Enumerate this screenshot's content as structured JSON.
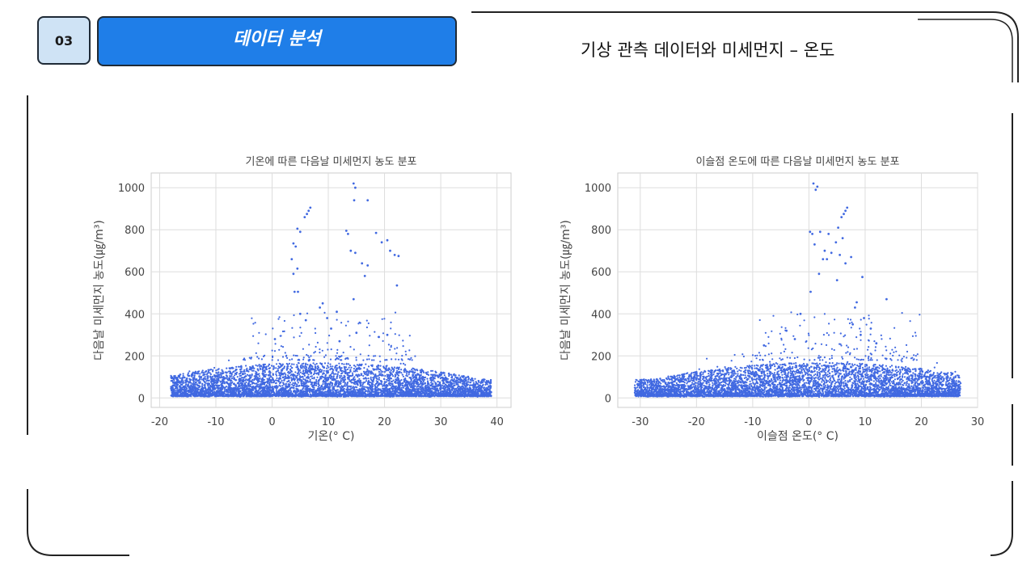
{
  "header": {
    "section_number": "03",
    "section_title": "데이터 분석",
    "slide_title": "기상 관측 데이터와 미세먼지 – 온도"
  },
  "colors": {
    "accent": "#1f7ee8",
    "number_box": "#cfe3f5",
    "point": "#4169e1",
    "grid": "#dddddd"
  },
  "chart_data": [
    {
      "type": "scatter",
      "title": "기온에 따른 다음날 미세먼지 농도 분포",
      "xlabel": "기온(° C)",
      "ylabel": "다음날 미세먼지 농도(㎍/m³)",
      "xlim": [
        -21.5,
        42.5
      ],
      "ylim": [
        -45,
        1070
      ],
      "xticks": [
        -20,
        -10,
        0,
        10,
        20,
        30,
        40
      ],
      "yticks": [
        0,
        200,
        400,
        600,
        800,
        1000
      ],
      "grid": true,
      "bulk": {
        "x_range": [
          -18,
          39
        ],
        "y_typical": [
          5,
          120
        ],
        "peak_center": 8
      },
      "outliers": [
        {
          "x": 14.5,
          "y": 1020
        },
        {
          "x": 14.8,
          "y": 1000
        },
        {
          "x": 14.6,
          "y": 940
        },
        {
          "x": 17.0,
          "y": 940
        },
        {
          "x": 6.8,
          "y": 905
        },
        {
          "x": 6.5,
          "y": 890
        },
        {
          "x": 6.2,
          "y": 875
        },
        {
          "x": 5.8,
          "y": 860
        },
        {
          "x": 4.5,
          "y": 805
        },
        {
          "x": 5.0,
          "y": 790
        },
        {
          "x": 13.2,
          "y": 795
        },
        {
          "x": 13.5,
          "y": 780
        },
        {
          "x": 18.5,
          "y": 785
        },
        {
          "x": 20.5,
          "y": 750
        },
        {
          "x": 3.8,
          "y": 735
        },
        {
          "x": 4.2,
          "y": 720
        },
        {
          "x": 19.5,
          "y": 740
        },
        {
          "x": 14.0,
          "y": 700
        },
        {
          "x": 14.8,
          "y": 690
        },
        {
          "x": 21.0,
          "y": 700
        },
        {
          "x": 21.8,
          "y": 680
        },
        {
          "x": 22.5,
          "y": 675
        },
        {
          "x": 3.5,
          "y": 660
        },
        {
          "x": 16.0,
          "y": 640
        },
        {
          "x": 17.0,
          "y": 630
        },
        {
          "x": 4.5,
          "y": 615
        },
        {
          "x": 3.8,
          "y": 590
        },
        {
          "x": 16.5,
          "y": 580
        },
        {
          "x": 22.2,
          "y": 535
        },
        {
          "x": 4.0,
          "y": 505
        },
        {
          "x": 4.6,
          "y": 505
        },
        {
          "x": 14.5,
          "y": 470
        },
        {
          "x": 9.0,
          "y": 450
        },
        {
          "x": 8.5,
          "y": 430
        },
        {
          "x": 5.0,
          "y": 400
        },
        {
          "x": 11.5,
          "y": 410
        },
        {
          "x": 9.8,
          "y": 380
        },
        {
          "x": 6.0,
          "y": 370
        },
        {
          "x": 10.5,
          "y": 330
        },
        {
          "x": 15.0,
          "y": 310
        },
        {
          "x": 20.5,
          "y": 300
        },
        {
          "x": 19.0,
          "y": 290
        },
        {
          "x": 0.5,
          "y": 280
        },
        {
          "x": 12.0,
          "y": 270
        }
      ]
    },
    {
      "type": "scatter",
      "title": "이슬점 온도에 따른 다음날 미세먼지 농도 분포",
      "xlabel": "이슬점 온도(° C)",
      "ylabel": "다음날 미세먼지 농도(㎍/m³)",
      "xlim": [
        -34,
        30
      ],
      "ylim": [
        -45,
        1070
      ],
      "xticks": [
        -30,
        -20,
        -10,
        0,
        10,
        20,
        30
      ],
      "yticks": [
        0,
        200,
        400,
        600,
        800,
        1000
      ],
      "grid": true,
      "bulk": {
        "x_range": [
          -31,
          27
        ],
        "y_typical": [
          5,
          120
        ],
        "peak_center": 2
      },
      "outliers": [
        {
          "x": 0.8,
          "y": 1020
        },
        {
          "x": 1.5,
          "y": 1005
        },
        {
          "x": 1.2,
          "y": 990
        },
        {
          "x": 6.8,
          "y": 905
        },
        {
          "x": 6.5,
          "y": 890
        },
        {
          "x": 6.2,
          "y": 875
        },
        {
          "x": 5.8,
          "y": 860
        },
        {
          "x": 5.2,
          "y": 810
        },
        {
          "x": 0.2,
          "y": 790
        },
        {
          "x": 0.6,
          "y": 780
        },
        {
          "x": 2.0,
          "y": 790
        },
        {
          "x": 3.5,
          "y": 780
        },
        {
          "x": 4.8,
          "y": 740
        },
        {
          "x": 6.0,
          "y": 760
        },
        {
          "x": 1.0,
          "y": 730
        },
        {
          "x": 2.8,
          "y": 700
        },
        {
          "x": 4.0,
          "y": 690
        },
        {
          "x": 5.5,
          "y": 680
        },
        {
          "x": 7.5,
          "y": 670
        },
        {
          "x": 2.5,
          "y": 660
        },
        {
          "x": 3.2,
          "y": 660
        },
        {
          "x": 6.5,
          "y": 640
        },
        {
          "x": 1.8,
          "y": 590
        },
        {
          "x": 9.5,
          "y": 575
        },
        {
          "x": 5.0,
          "y": 560
        },
        {
          "x": 0.3,
          "y": 505
        },
        {
          "x": 13.8,
          "y": 470
        },
        {
          "x": 8.5,
          "y": 455
        },
        {
          "x": 8.2,
          "y": 430
        },
        {
          "x": -1.5,
          "y": 400
        },
        {
          "x": 9.8,
          "y": 380
        },
        {
          "x": 7.8,
          "y": 350
        },
        {
          "x": 11.0,
          "y": 330
        },
        {
          "x": -4.0,
          "y": 320
        },
        {
          "x": 9.2,
          "y": 300
        },
        {
          "x": -2.5,
          "y": 280
        },
        {
          "x": 12.0,
          "y": 260
        },
        {
          "x": -8.0,
          "y": 250
        }
      ]
    }
  ]
}
